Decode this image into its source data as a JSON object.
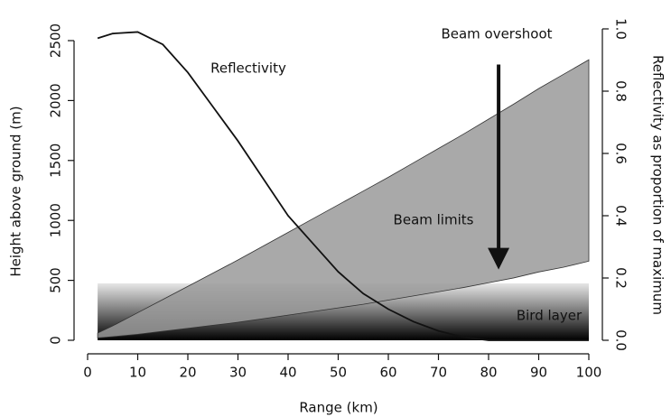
{
  "chart_data": {
    "type": "area",
    "x_label": "Range (km)",
    "y_label": "Height above ground (m)",
    "y2_label": "Reflectivity as proportion of maximum",
    "x": [
      2,
      5,
      10,
      15,
      20,
      25,
      30,
      35,
      40,
      45,
      50,
      55,
      60,
      65,
      70,
      75,
      80,
      85,
      90,
      95,
      100
    ],
    "beam": {
      "label": "Beam limits",
      "color": "#9a9a9a",
      "upper": [
        60,
        120,
        230,
        340,
        450,
        560,
        670,
        785,
        900,
        1015,
        1130,
        1245,
        1360,
        1480,
        1600,
        1720,
        1845,
        1970,
        2100,
        2220,
        2340
      ],
      "lower": [
        20,
        30,
        50,
        75,
        100,
        125,
        150,
        180,
        210,
        240,
        270,
        300,
        335,
        370,
        405,
        440,
        480,
        520,
        570,
        610,
        660
      ]
    },
    "reflectivity": {
      "label": "Reflectivity",
      "axis": "y2",
      "color": "#111111",
      "values": [
        0.97,
        0.985,
        0.99,
        0.95,
        0.86,
        0.75,
        0.64,
        0.52,
        0.4,
        0.31,
        0.22,
        0.15,
        0.1,
        0.06,
        0.03,
        0.01,
        0.0,
        0.0,
        0.0,
        0.0,
        0.0
      ]
    },
    "bird_layer": {
      "label": "Bird layer",
      "x_range": [
        2,
        100
      ],
      "top": 475
    },
    "overshoot": {
      "label": "Beam overshoot",
      "x": 82,
      "from": 2300,
      "to": 500
    },
    "xlim": [
      0,
      100
    ],
    "xticks": [
      0,
      10,
      20,
      30,
      40,
      50,
      60,
      70,
      80,
      90,
      100
    ],
    "ylim": [
      0,
      2500
    ],
    "yticks": [
      0,
      500,
      1000,
      1500,
      2000,
      2500
    ],
    "y2lim": [
      0,
      1
    ],
    "y2ticks": [
      {
        "value": 0,
        "label": "0.0"
      },
      {
        "value": 0.2,
        "label": "0.2"
      },
      {
        "value": 0.4,
        "label": "0.4"
      },
      {
        "value": 0.6,
        "label": "0.6"
      },
      {
        "value": 0.8,
        "label": "0.8"
      },
      {
        "value": 1,
        "label": "1.0"
      }
    ]
  }
}
